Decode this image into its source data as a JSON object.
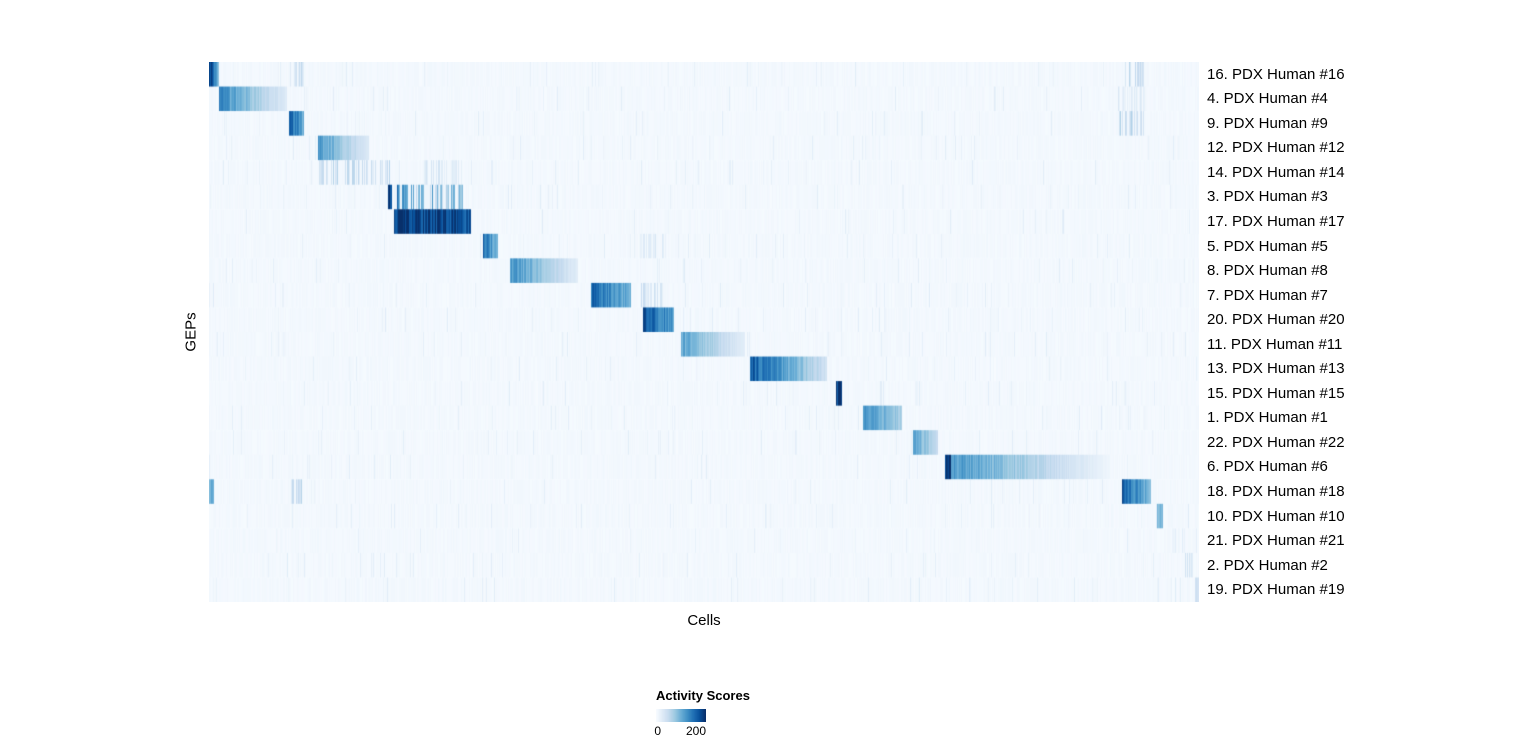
{
  "figure": {
    "background": "#ffffff"
  },
  "chart_data": {
    "type": "heatmap",
    "title": "",
    "xlabel": "Cells",
    "ylabel": "GEPs",
    "grid": false,
    "legend_position": "bottom",
    "colormap": "Blues",
    "colormap_stops": [
      "#f7fbff",
      "#deebf7",
      "#c6dbef",
      "#9ecae1",
      "#6baed6",
      "#4292c6",
      "#2171b5",
      "#08519c",
      "#08306b"
    ],
    "value_range": [
      0,
      250
    ],
    "background_value": 5,
    "legend": {
      "title": "Activity Scores",
      "ticks": [
        {
          "label": "0",
          "value": 0
        },
        {
          "label": "200",
          "value": 200
        }
      ]
    },
    "rows": [
      {
        "label": "16. PDX Human #16",
        "blocks": [
          [
            0.0,
            0.01,
            240,
            110,
            "solid"
          ],
          [
            0.08,
            0.095,
            50,
            50,
            "stripes"
          ],
          [
            0.918,
            0.945,
            55,
            55,
            "stripes"
          ]
        ]
      },
      {
        "label": "4. PDX Human #4",
        "blocks": [
          [
            0.01,
            0.078,
            165,
            30,
            "solid"
          ],
          [
            0.918,
            0.945,
            28,
            28,
            "stripes"
          ]
        ]
      },
      {
        "label": "9. PDX Human #9",
        "blocks": [
          [
            0.08,
            0.095,
            215,
            130,
            "solid"
          ],
          [
            0.918,
            0.945,
            65,
            65,
            "stripes"
          ]
        ]
      },
      {
        "label": "12. PDX Human #12",
        "blocks": [
          [
            0.11,
            0.161,
            150,
            35,
            "solid"
          ]
        ]
      },
      {
        "label": "14. PDX Human #14",
        "blocks": [
          [
            0.11,
            0.185,
            55,
            55,
            "stripes"
          ],
          [
            0.215,
            0.255,
            38,
            38,
            "stripes"
          ]
        ]
      },
      {
        "label": "3. PDX Human #3",
        "blocks": [
          [
            0.18,
            0.184,
            245,
            245,
            "solid"
          ],
          [
            0.186,
            0.256,
            150,
            85,
            "stripes"
          ]
        ]
      },
      {
        "label": "17. PDX Human #17",
        "blocks": [
          [
            0.186,
            0.264,
            245,
            220,
            "solid"
          ]
        ]
      },
      {
        "label": "5. PDX Human #5",
        "blocks": [
          [
            0.276,
            0.291,
            200,
            115,
            "solid"
          ],
          [
            0.435,
            0.462,
            28,
            28,
            "stripes"
          ]
        ]
      },
      {
        "label": "8. PDX Human #8",
        "blocks": [
          [
            0.304,
            0.372,
            160,
            28,
            "solid"
          ]
        ]
      },
      {
        "label": "7. PDX Human #7",
        "blocks": [
          [
            0.385,
            0.426,
            200,
            120,
            "solid"
          ],
          [
            0.435,
            0.462,
            45,
            45,
            "stripes"
          ]
        ]
      },
      {
        "label": "20. PDX Human #20",
        "blocks": [
          [
            0.438,
            0.469,
            220,
            145,
            "solid"
          ]
        ]
      },
      {
        "label": "11. PDX Human #11",
        "blocks": [
          [
            0.476,
            0.541,
            140,
            25,
            "solid"
          ]
        ]
      },
      {
        "label": "13. PDX Human #13",
        "blocks": [
          [
            0.546,
            0.624,
            215,
            50,
            "solid"
          ]
        ]
      },
      {
        "label": "15. PDX Human #15",
        "blocks": [
          [
            0.633,
            0.639,
            235,
            235,
            "solid"
          ]
        ]
      },
      {
        "label": "1. PDX Human #1",
        "blocks": [
          [
            0.66,
            0.699,
            165,
            90,
            "solid"
          ]
        ]
      },
      {
        "label": "22. PDX Human #22",
        "blocks": [
          [
            0.711,
            0.736,
            140,
            60,
            "solid"
          ]
        ]
      },
      {
        "label": "6. PDX Human #6",
        "blocks": [
          [
            0.743,
            0.749,
            245,
            245,
            "solid"
          ],
          [
            0.749,
            0.91,
            155,
            10,
            "solid"
          ]
        ]
      },
      {
        "label": "18. PDX Human #18",
        "blocks": [
          [
            0.0,
            0.005,
            125,
            125,
            "solid"
          ],
          [
            0.08,
            0.095,
            60,
            60,
            "stripes"
          ],
          [
            0.922,
            0.951,
            220,
            110,
            "solid"
          ]
        ]
      },
      {
        "label": "10. PDX Human #10",
        "blocks": [
          [
            0.957,
            0.963,
            115,
            115,
            "solid"
          ]
        ]
      },
      {
        "label": "21. PDX Human #21",
        "blocks": [
          [
            0.972,
            0.986,
            18,
            18,
            "stripes"
          ]
        ]
      },
      {
        "label": "2. PDX Human #2",
        "blocks": [
          [
            0.985,
            0.993,
            35,
            35,
            "stripes"
          ]
        ]
      },
      {
        "label": "19. PDX Human #19",
        "blocks": [
          [
            0.995,
            1.001,
            48,
            48,
            "solid"
          ]
        ]
      }
    ]
  }
}
